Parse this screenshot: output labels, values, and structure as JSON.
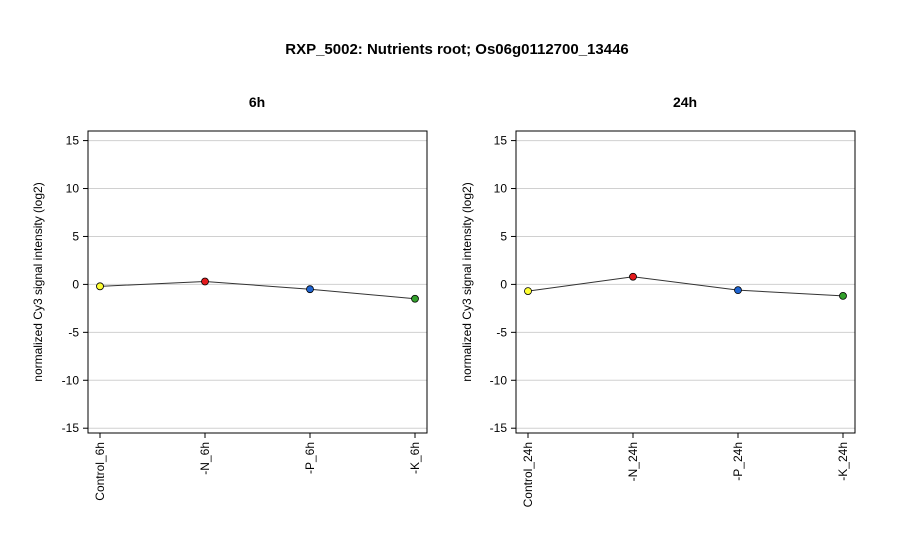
{
  "figure": {
    "title": "RXP_5002: Nutrients root; Os06g0112700_13446"
  },
  "chart_data": [
    {
      "type": "line",
      "title": "6h",
      "xlabel": "",
      "ylabel": "normalized Cy3 signal intensity (log2)",
      "categories": [
        "Control_6h",
        "-N_6h",
        "-P_6h",
        "-K_6h"
      ],
      "values": [
        -0.2,
        0.3,
        -0.5,
        -1.5
      ],
      "point_colors": [
        "#ffff33",
        "#e31a1c",
        "#1f64d1",
        "#33a02c"
      ],
      "yticks": [
        -15,
        -10,
        -5,
        0,
        5,
        10,
        15
      ],
      "ylim": [
        -15.5,
        16
      ],
      "grid": true,
      "legend": "none"
    },
    {
      "type": "line",
      "title": "24h",
      "xlabel": "",
      "ylabel": "normalized Cy3 signal intensity (log2)",
      "categories": [
        "Control_24h",
        "-N_24h",
        "-P_24h",
        "-K_24h"
      ],
      "values": [
        -0.7,
        0.8,
        -0.6,
        -1.2
      ],
      "point_colors": [
        "#ffff33",
        "#e31a1c",
        "#1f64d1",
        "#33a02c"
      ],
      "yticks": [
        -15,
        -10,
        -5,
        0,
        5,
        10,
        15
      ],
      "ylim": [
        -15.5,
        16
      ],
      "grid": true,
      "legend": "none"
    }
  ]
}
